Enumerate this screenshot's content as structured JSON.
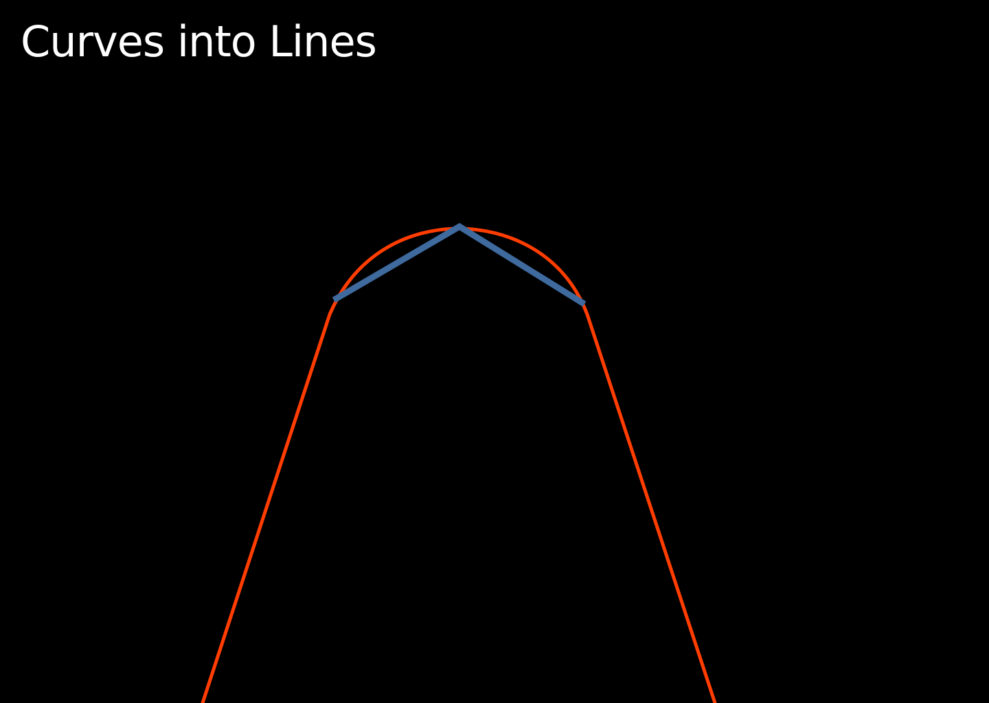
{
  "slide": {
    "title": "Curves into Lines"
  },
  "colors": {
    "background": "#000000",
    "title": "#ffffff",
    "curve": "#ff3d00",
    "approximation_lines": "#3f6a9e"
  },
  "diagram": {
    "curve_label": "",
    "approximation_label": ""
  }
}
